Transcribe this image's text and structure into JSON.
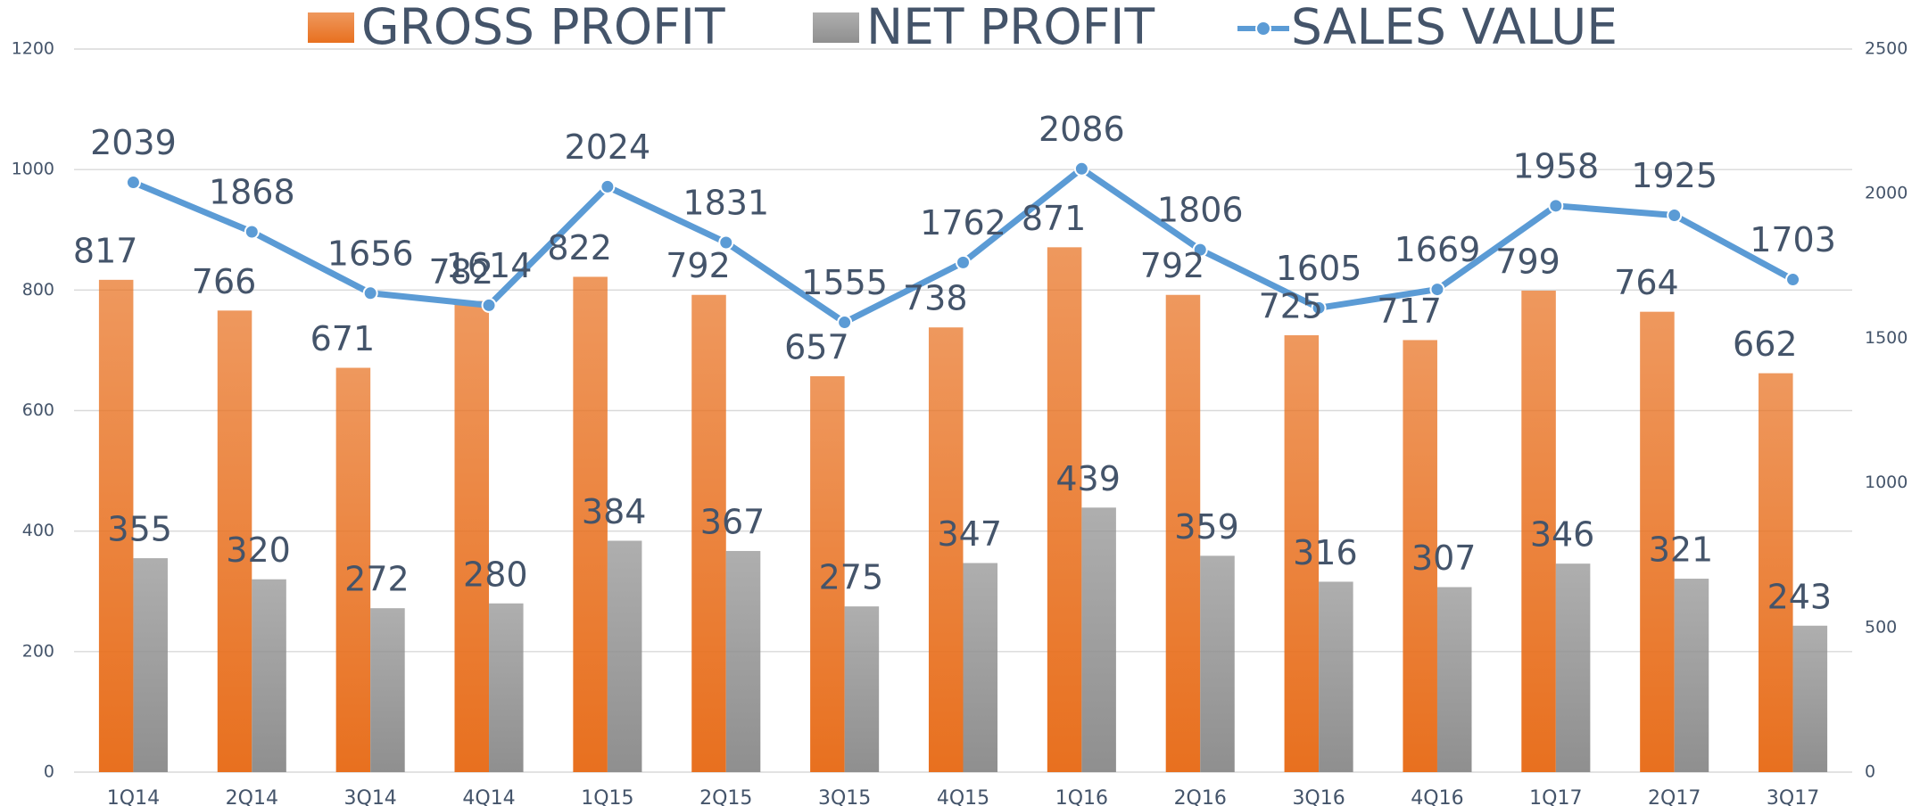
{
  "chart_data": {
    "type": "bar",
    "categories": [
      "1Q14",
      "2Q14",
      "3Q14",
      "4Q14",
      "1Q15",
      "2Q15",
      "3Q15",
      "4Q15",
      "1Q16",
      "2Q16",
      "3Q16",
      "4Q16",
      "1Q17",
      "2Q17",
      "3Q17"
    ],
    "series": [
      {
        "name": "GROSS PROFIT",
        "color": "#e8701f",
        "type": "bar",
        "values": [
          817,
          766,
          671,
          782,
          822,
          792,
          657,
          738,
          871,
          792,
          725,
          717,
          799,
          764,
          662
        ]
      },
      {
        "name": "NET PROFIT",
        "color": "#8f8f8f",
        "type": "bar",
        "values": [
          355,
          320,
          272,
          280,
          384,
          367,
          275,
          347,
          439,
          359,
          316,
          307,
          346,
          321,
          243
        ]
      },
      {
        "name": "SALES VALUE",
        "color": "#5b9bd5",
        "type": "line",
        "axis": "y2",
        "values": [
          2039,
          1868,
          1656,
          1614,
          2024,
          1831,
          1555,
          1762,
          2086,
          1806,
          1605,
          1669,
          1958,
          1925,
          1703
        ]
      }
    ],
    "ylim": [
      0,
      1200
    ],
    "yticks": [
      0,
      200,
      400,
      600,
      800,
      1000,
      1200
    ],
    "y2lim": [
      0,
      2500
    ],
    "y2ticks": [
      0,
      500,
      1000,
      1500,
      2000,
      2500
    ],
    "grid": true,
    "legend": "top"
  }
}
